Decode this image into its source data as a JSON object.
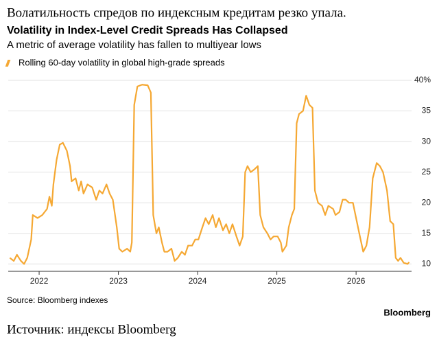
{
  "chart_data": {
    "type": "line",
    "translated_title": "Волатильность спредов по индексным кредитам резко упала.",
    "title": "Volatility in Index-Level Credit Spreads Has Collapsed",
    "subtitle": "A metric of average volatility has fallen to multiyear lows",
    "source": "Source: Bloomberg indexes",
    "logo": "Bloomberg",
    "translated_source": "Источник: индексы Bloomberg",
    "grid": true,
    "xlim": [
      2021.61,
      2026.7
    ],
    "xticks": [
      2022,
      2023,
      2024,
      2025,
      2026
    ],
    "ylim": [
      8.8,
      40
    ],
    "yticks": [
      10,
      15,
      20,
      25,
      30,
      35,
      {
        "value": 40,
        "label": "40%"
      }
    ],
    "x": [
      2021.63,
      2021.68,
      2021.72,
      2021.77,
      2021.81,
      2021.85,
      2021.9,
      2021.92,
      2021.98,
      2022.04,
      2022.1,
      2022.13,
      2022.16,
      2022.18,
      2022.22,
      2022.26,
      2022.3,
      2022.35,
      2022.39,
      2022.41,
      2022.46,
      2022.5,
      2022.53,
      2022.56,
      2022.61,
      2022.67,
      2022.72,
      2022.76,
      2022.8,
      2022.85,
      2022.89,
      2022.93,
      2022.98,
      2023.01,
      2023.05,
      2023.11,
      2023.15,
      2023.17,
      2023.2,
      2023.24,
      2023.3,
      2023.37,
      2023.41,
      2023.44,
      2023.48,
      2023.51,
      2023.55,
      2023.58,
      2023.62,
      2023.67,
      2023.71,
      2023.75,
      2023.8,
      2023.84,
      2023.88,
      2023.93,
      2023.97,
      2024.01,
      2024.06,
      2024.1,
      2024.14,
      2024.19,
      2024.23,
      2024.27,
      2024.32,
      2024.36,
      2024.4,
      2024.44,
      2024.49,
      2024.53,
      2024.57,
      2024.6,
      2024.63,
      2024.67,
      2024.72,
      2024.76,
      2024.79,
      2024.83,
      2024.88,
      2024.92,
      2024.96,
      2025.01,
      2025.05,
      2025.07,
      2025.12,
      2025.15,
      2025.19,
      2025.22,
      2025.25,
      2025.28,
      2025.33,
      2025.37,
      2025.41,
      2025.45,
      2025.48,
      2025.52,
      2025.57,
      2025.61,
      2025.65,
      2025.71,
      2025.74,
      2025.79,
      2025.83,
      2025.87,
      2025.91,
      2025.96,
      2026.0,
      2026.04,
      2026.09,
      2026.13,
      2026.17,
      2026.21,
      2026.26,
      2026.3,
      2026.34,
      2026.39,
      2026.43,
      2026.47,
      2026.5,
      2026.53,
      2026.56,
      2026.6,
      2026.65,
      2026.67
    ],
    "series": [
      {
        "name": "Rolling 60-day volatility in global high-grade spreads",
        "color": "#f5a833",
        "values": [
          11,
          10.5,
          11.5,
          10.5,
          10,
          11,
          14,
          18,
          17.5,
          18,
          19,
          21,
          19.5,
          23,
          27,
          29.5,
          29.8,
          28.5,
          26,
          23.5,
          24,
          22,
          23.5,
          21.5,
          23,
          22.5,
          20.5,
          22,
          21.5,
          23,
          21.5,
          20.5,
          16,
          12.5,
          12,
          12.5,
          12,
          13.5,
          36,
          39,
          39.3,
          39.2,
          38,
          18,
          15,
          16,
          13.5,
          12,
          12,
          12.5,
          10.5,
          11,
          12,
          11.5,
          13,
          13,
          14,
          14,
          16,
          17.5,
          16.5,
          18,
          16,
          17.5,
          15.5,
          16.5,
          15,
          16.5,
          14.5,
          13,
          14.5,
          25,
          26,
          25,
          25.5,
          26,
          18,
          16,
          15,
          14,
          14.5,
          14.5,
          13.5,
          12,
          13,
          16,
          18,
          19,
          33,
          34.5,
          35,
          37.5,
          36,
          35.5,
          22,
          20,
          19.5,
          18,
          19.5,
          19,
          18,
          18.5,
          20.5,
          20.5,
          20,
          20,
          17.5,
          15,
          12,
          13,
          16,
          24,
          26.5,
          26,
          25,
          22,
          17,
          16.5,
          11,
          10.5,
          11,
          10.2,
          10,
          10.3
        ]
      }
    ]
  }
}
